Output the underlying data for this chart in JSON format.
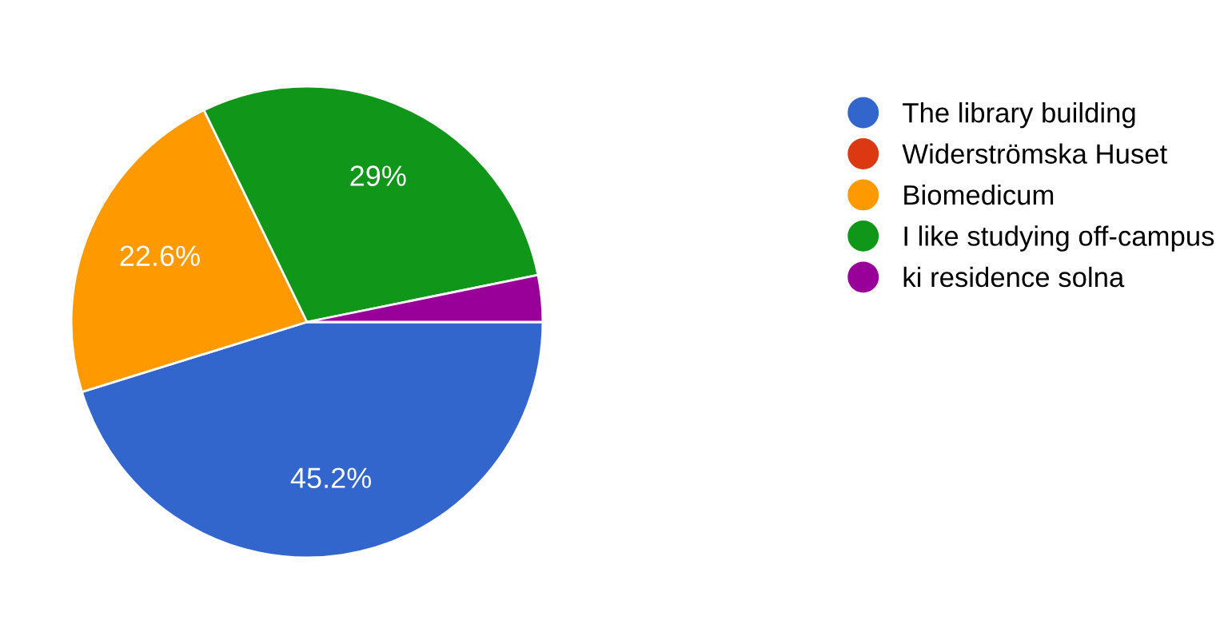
{
  "chart_data": {
    "type": "pie",
    "categories": [
      "The library building",
      "Widerströmska Huset",
      "Biomedicum",
      "I like studying off-campus",
      "ki residence solna"
    ],
    "values": [
      45.2,
      0,
      22.6,
      29,
      3.2
    ],
    "colors": [
      "#3366cc",
      "#dc3912",
      "#ff9900",
      "#109618",
      "#990099"
    ],
    "value_labels": [
      "45.2%",
      null,
      "22.6%",
      "29%",
      null
    ],
    "legend": "right"
  }
}
